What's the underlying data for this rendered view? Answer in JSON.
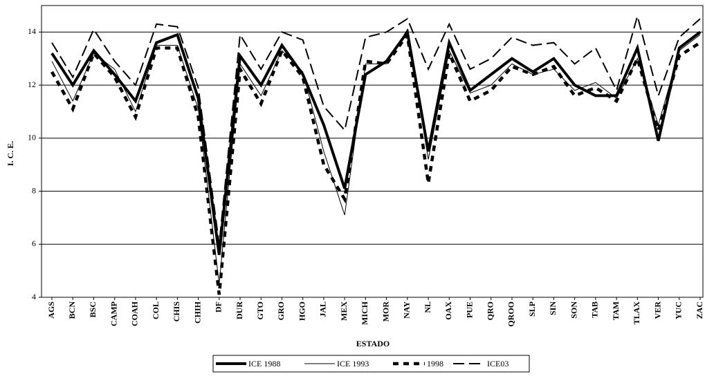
{
  "chart_data": {
    "type": "line",
    "y_label": "I. C. E.",
    "x_label": "ESTADO",
    "categories": [
      "AGS",
      "BCN",
      "BSC",
      "CAMP",
      "COAH",
      "COL",
      "CHIS",
      "CHIH",
      "DF",
      "DUR",
      "GTO",
      "GRO",
      "HGO",
      "JAL",
      "MEX",
      "MICH",
      "MOR",
      "NAY",
      "NL",
      "OAX",
      "PUE",
      "QRO",
      "QROO",
      "SLP",
      "SIN",
      "SON",
      "TAB",
      "TAM",
      "TLAX",
      "VER",
      "YUC",
      "ZAC"
    ],
    "series": [
      {
        "name": "ICE 1988",
        "color": "#000000",
        "values": [
          13.2,
          12.0,
          13.3,
          12.4,
          11.4,
          13.6,
          13.9,
          11.5,
          5.6,
          13.1,
          12.0,
          13.5,
          12.4,
          10.5,
          8.1,
          12.4,
          12.9,
          14.0,
          9.5,
          13.6,
          11.8,
          12.4,
          13.0,
          12.5,
          13.0,
          12.0,
          11.6,
          11.6,
          13.4,
          9.9,
          13.4,
          14.0
        ]
      },
      {
        "name": "ICE 1993",
        "color": "#000000",
        "values": [
          12.9,
          11.4,
          13.2,
          12.6,
          11.0,
          13.5,
          13.5,
          11.1,
          4.5,
          12.8,
          11.6,
          13.3,
          12.5,
          9.5,
          7.1,
          12.8,
          12.8,
          14.1,
          9.2,
          13.3,
          11.7,
          12.0,
          12.8,
          12.4,
          12.6,
          11.8,
          12.1,
          11.5,
          13.0,
          10.5,
          13.3,
          13.9
        ]
      },
      {
        "name": "1998",
        "color": "#000000",
        "values": [
          12.5,
          11.1,
          13.2,
          12.3,
          10.8,
          13.4,
          13.4,
          10.8,
          4.1,
          12.6,
          11.3,
          13.3,
          12.3,
          9.0,
          7.7,
          12.9,
          12.8,
          13.9,
          8.3,
          13.2,
          11.4,
          11.8,
          12.7,
          12.4,
          12.7,
          11.6,
          11.9,
          11.4,
          13.0,
          10.3,
          13.1,
          13.6
        ]
      },
      {
        "name": "ICE03",
        "color": "#000000",
        "values": [
          13.6,
          12.3,
          14.1,
          12.9,
          12.0,
          14.3,
          14.2,
          11.9,
          6.0,
          13.9,
          12.6,
          14.0,
          13.7,
          11.2,
          10.3,
          13.8,
          14.0,
          14.5,
          12.6,
          14.3,
          12.6,
          13.0,
          13.8,
          13.5,
          13.6,
          12.8,
          13.4,
          11.8,
          14.6,
          11.6,
          13.8,
          14.5
        ]
      }
    ],
    "ylim": [
      4,
      15
    ],
    "yticks": [
      4,
      6,
      8,
      10,
      12,
      14
    ],
    "grid": true,
    "legend": "bottom"
  }
}
